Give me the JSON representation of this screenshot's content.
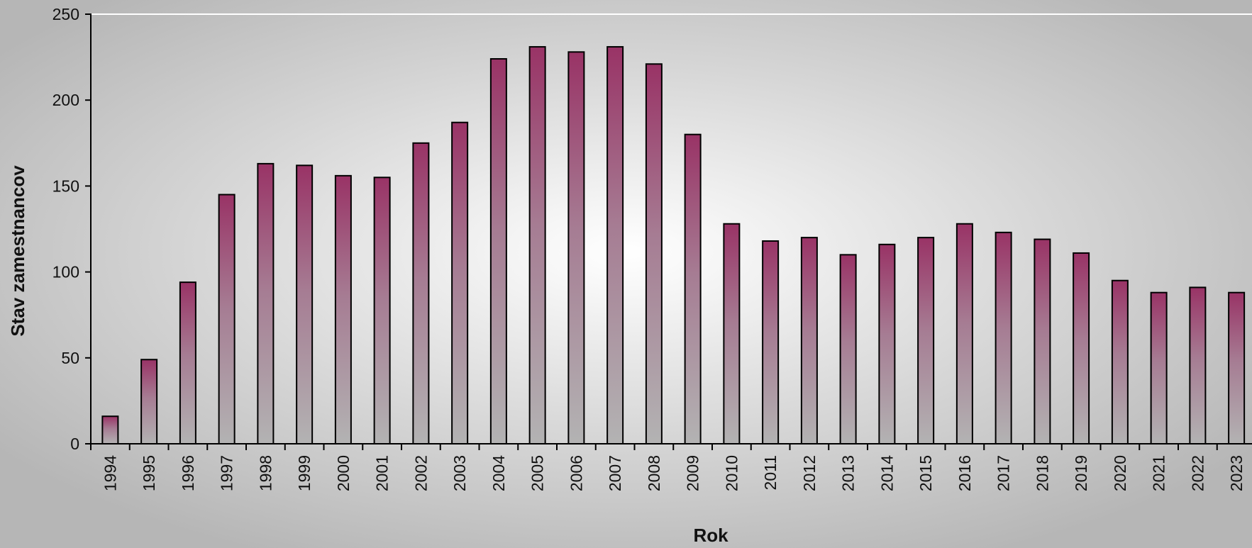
{
  "chart_data": {
    "type": "bar",
    "title": "",
    "xlabel": "Rok",
    "ylabel": "Stav zamestnancov",
    "ylim": [
      0,
      250
    ],
    "yticks": [
      0,
      50,
      100,
      150,
      200,
      250
    ],
    "categories": [
      "1994",
      "1995",
      "1996",
      "1997",
      "1998",
      "1999",
      "2000",
      "2001",
      "2002",
      "2003",
      "2004",
      "2005",
      "2006",
      "2007",
      "2008",
      "2009",
      "2010",
      "2011",
      "2012",
      "2013",
      "2014",
      "2015",
      "2016",
      "2017",
      "2018",
      "2019",
      "2020",
      "2021",
      "2022",
      "2023"
    ],
    "values": [
      16,
      49,
      94,
      145,
      163,
      162,
      156,
      155,
      175,
      187,
      224,
      231,
      228,
      231,
      221,
      180,
      128,
      118,
      120,
      110,
      116,
      120,
      128,
      123,
      119,
      111,
      95,
      88,
      91,
      88
    ],
    "grid": false,
    "legend": "none",
    "colors": {
      "bar_top": "#993366",
      "bar_bottom": "#b4b4b4",
      "bar_stroke": "#000000",
      "background_light": "#ffffff",
      "background_dark": "#b8b8b8"
    }
  }
}
